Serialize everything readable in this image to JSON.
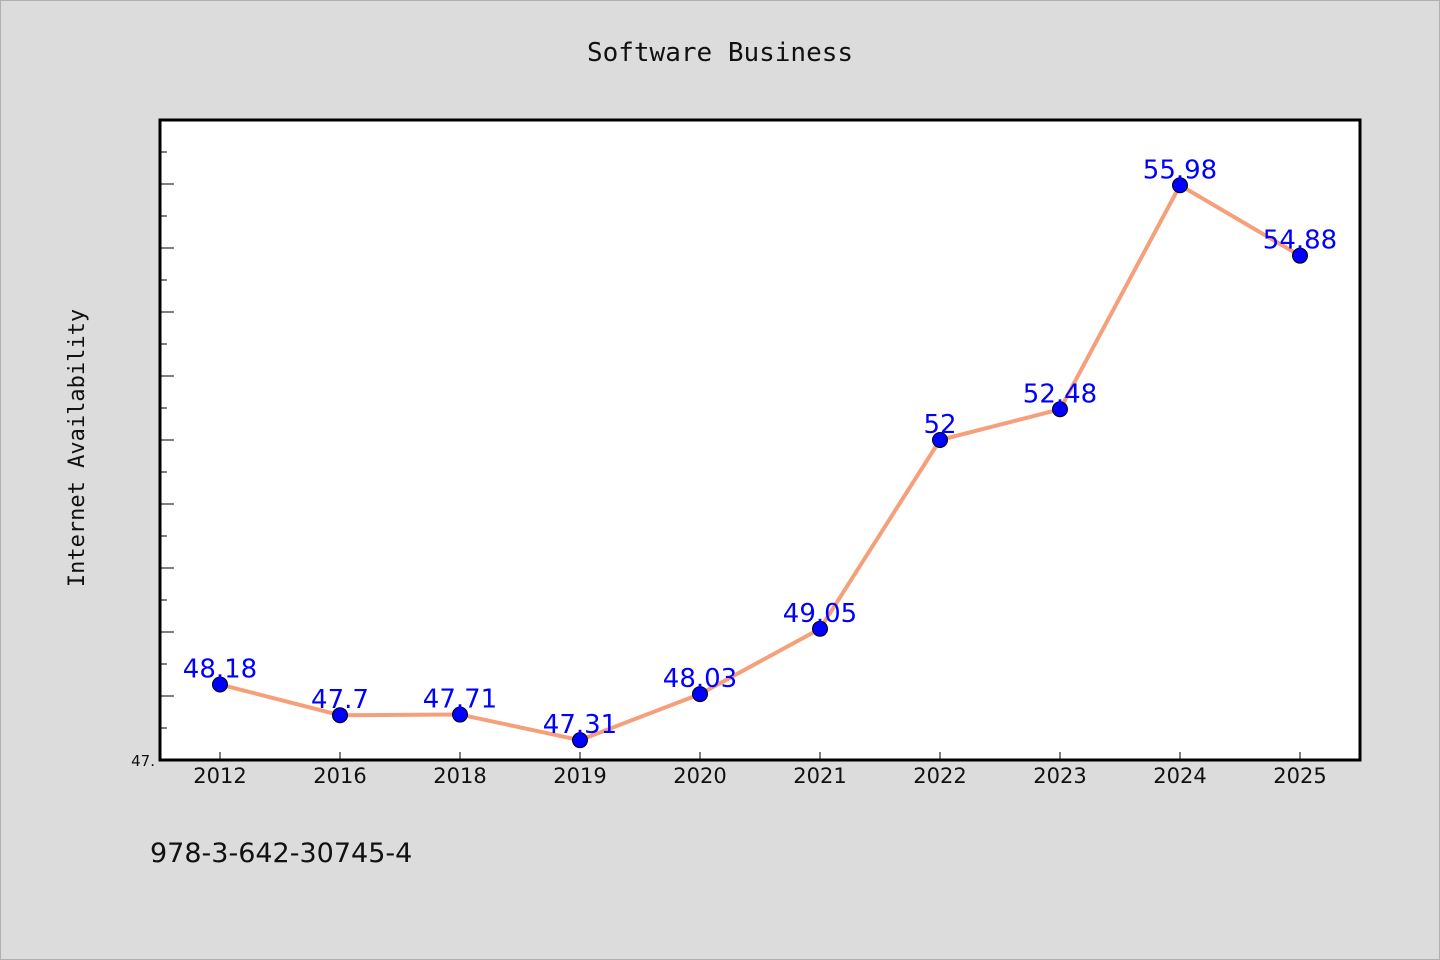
{
  "chart_data": {
    "type": "line",
    "title": "Software Business",
    "xlabel": "",
    "ylabel": "Internet Availability",
    "categories": [
      "2012",
      "2016",
      "2018",
      "2019",
      "2020",
      "2021",
      "2022",
      "2023",
      "2024",
      "2025"
    ],
    "values": [
      48.18,
      47.7,
      47.71,
      47.31,
      48.03,
      49.05,
      52,
      52.48,
      55.98,
      54.88
    ],
    "data_labels": [
      "48.18",
      "47.7",
      "47.71",
      "47.31",
      "48.03",
      "49.05",
      "52",
      "52.48",
      "55.98",
      "54.88"
    ],
    "ylim": [
      47.0,
      57.0
    ],
    "ytick_label": "47.",
    "grid": false,
    "line_color": "#f5a07a",
    "marker_color": "#0000ff",
    "label_color": "#0000ff"
  },
  "footer": {
    "isbn": "978-3-642-30745-4"
  }
}
